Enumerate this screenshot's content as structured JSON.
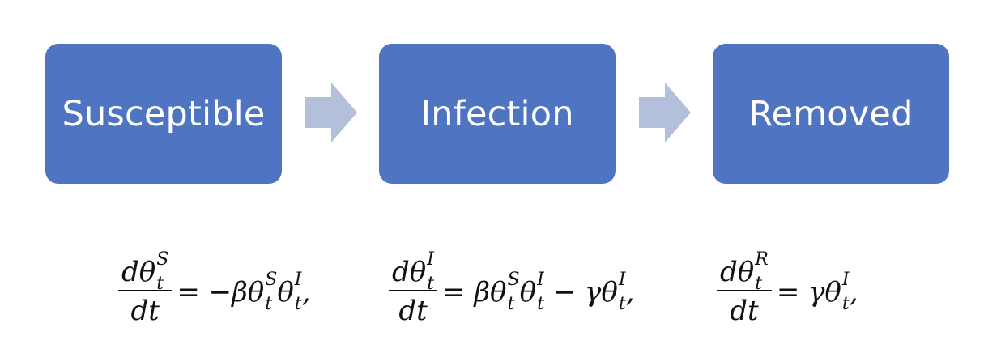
{
  "boxes": [
    {
      "label": "Susceptible",
      "color": "#4f74c1"
    },
    {
      "label": "Infection",
      "color": "#4f74c1"
    },
    {
      "label": "Removed",
      "color": "#4f74c1"
    }
  ],
  "arrow_color": "#b4bfdc",
  "equations": [
    {
      "num": "dθ",
      "num_sup": "S",
      "num_sub": "t",
      "den": "dt",
      "rhs": "= −βθ",
      "rhs_sup1": "S",
      "rhs_sub1": "t",
      "rhs_mid": "θ",
      "rhs_sup2": "I",
      "rhs_sub2": "t",
      "rhs_end": ","
    },
    {
      "num": "dθ",
      "num_sup": "I",
      "num_sub": "t",
      "den": "dt",
      "rhs": "= βθ",
      "rhs_sup1": "S",
      "rhs_sub1": "t",
      "rhs_mid": "θ",
      "rhs_sup2": "I",
      "rhs_sub2": "t",
      "rhs_mid2": " − γθ",
      "rhs_sup3": "I",
      "rhs_sub3": "t",
      "rhs_end": ","
    },
    {
      "num": "dθ",
      "num_sup": "R",
      "num_sub": "t",
      "den": "dt",
      "rhs": "= γθ",
      "rhs_sup1": "I",
      "rhs_sub1": "t",
      "rhs_end": ","
    }
  ]
}
